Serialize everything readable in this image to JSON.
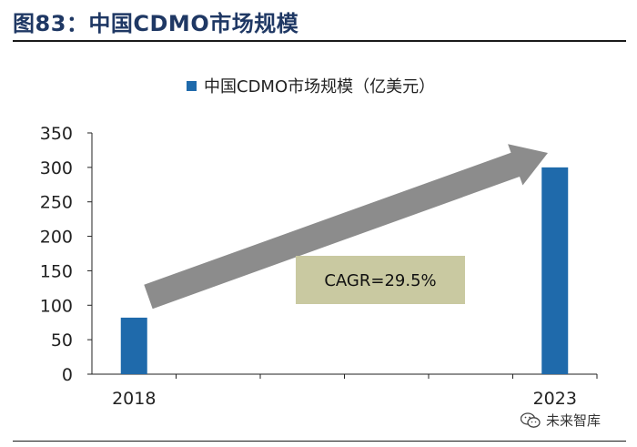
{
  "figure": {
    "title": "图83：中国CDMO市场规模",
    "watermark": "未来智库"
  },
  "chart_data": {
    "type": "bar",
    "title": "",
    "categories": [
      "2018",
      "2023"
    ],
    "series": [
      {
        "name": "中国CDMO市场规模（亿美元）",
        "values": [
          82,
          300
        ],
        "color": "#1f6aab"
      }
    ],
    "xlabel": "",
    "ylabel": "",
    "ylim": [
      0,
      350
    ],
    "yticks": [
      "0",
      "50",
      "100",
      "150",
      "200",
      "250",
      "300",
      "350"
    ],
    "grid": false,
    "legend": "top-center",
    "annotation": {
      "text": "CAGR=29.5%",
      "box_color": "#c9c9a1",
      "arrow_color": "#8c8c8c"
    }
  }
}
